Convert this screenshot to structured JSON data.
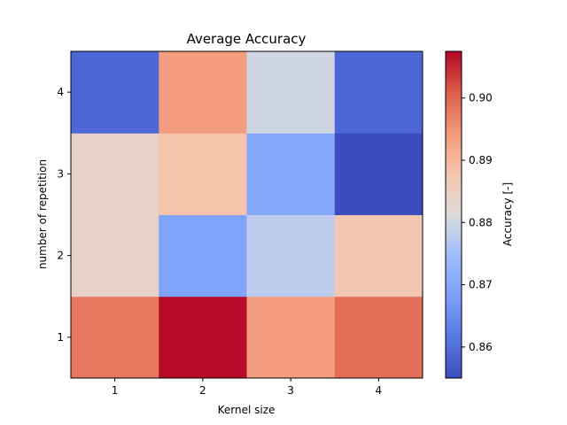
{
  "chart_data": {
    "type": "heatmap",
    "title": "Average Accuracy",
    "xlabel": "Kernel size",
    "ylabel": "number of repetition",
    "x_categories": [
      "1",
      "2",
      "3",
      "4"
    ],
    "y_categories": [
      "1",
      "2",
      "3",
      "4"
    ],
    "values": [
      [
        0.898,
        0.907,
        0.894,
        0.899
      ],
      [
        0.884,
        0.869,
        0.878,
        0.887
      ],
      [
        0.884,
        0.888,
        0.87,
        0.855
      ],
      [
        0.859,
        0.894,
        0.88,
        0.859
      ]
    ],
    "colorbar": {
      "label": "Accuracy [-]",
      "range": [
        0.855,
        0.9075
      ],
      "ticks": [
        "0.86",
        "0.87",
        "0.88",
        "0.89",
        "0.90"
      ],
      "tick_values": [
        0.86,
        0.87,
        0.88,
        0.89,
        0.9
      ],
      "colormap": "coolwarm"
    },
    "grid": false
  }
}
